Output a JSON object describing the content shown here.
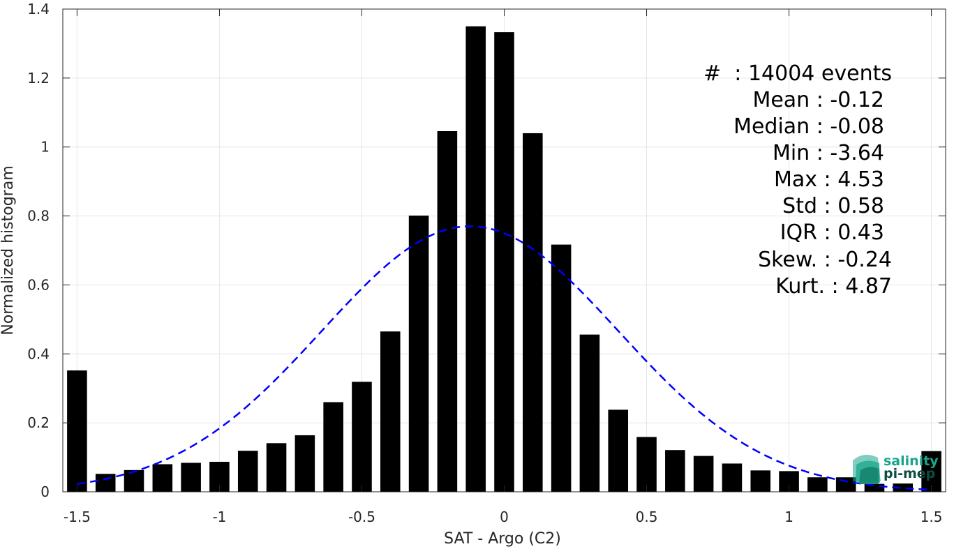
{
  "chart_data": {
    "type": "bar",
    "xlabel": "SAT - Argo (C2)",
    "ylabel": "Normalized histogram",
    "xlim": [
      -1.55,
      1.55
    ],
    "ylim": [
      0,
      1.4
    ],
    "grid": true,
    "xticks": [
      "-1.5",
      "-1",
      "-0.5",
      "0",
      "0.5",
      "1",
      "1.5"
    ],
    "yticks": [
      "0",
      "0.2",
      "0.4",
      "0.6",
      "0.8",
      "1",
      "1.2",
      "1.4"
    ],
    "bars": {
      "color": "#000000",
      "x": [
        -1.5,
        -1.4,
        -1.3,
        -1.2,
        -1.1,
        -1.0,
        -0.9,
        -0.8,
        -0.7,
        -0.6,
        -0.5,
        -0.4,
        -0.3,
        -0.2,
        -0.1,
        0.0,
        0.1,
        0.2,
        0.3,
        0.4,
        0.5,
        0.6,
        0.7,
        0.8,
        0.9,
        1.0,
        1.1,
        1.2,
        1.3,
        1.4,
        1.5
      ],
      "values": [
        0.352,
        0.052,
        0.063,
        0.08,
        0.084,
        0.087,
        0.119,
        0.141,
        0.164,
        0.26,
        0.319,
        0.465,
        0.801,
        1.046,
        1.35,
        1.333,
        1.04,
        0.717,
        0.456,
        0.238,
        0.159,
        0.121,
        0.104,
        0.082,
        0.062,
        0.06,
        0.042,
        0.042,
        0.023,
        0.024,
        0.118
      ]
    },
    "fit": {
      "type": "gaussian",
      "style": "dashed",
      "color": "#0000ff",
      "mean": -0.12,
      "std": 0.52,
      "peak": 0.77
    },
    "stats_box": {
      "position": "top-right",
      "lines": [
        "#  : 14004 events",
        "Mean : -0.12",
        "Median : -0.08",
        "Min : -3.64",
        "Max : 4.53",
        "Std : 0.58",
        "IQR : 0.43",
        "Skew. : -0.24",
        "Kurt. : 4.87"
      ]
    }
  },
  "logo": {
    "line1": "salinity",
    "line2": "pi-mep",
    "color": "#1aa58c",
    "dark_color": "#0d4d44"
  }
}
